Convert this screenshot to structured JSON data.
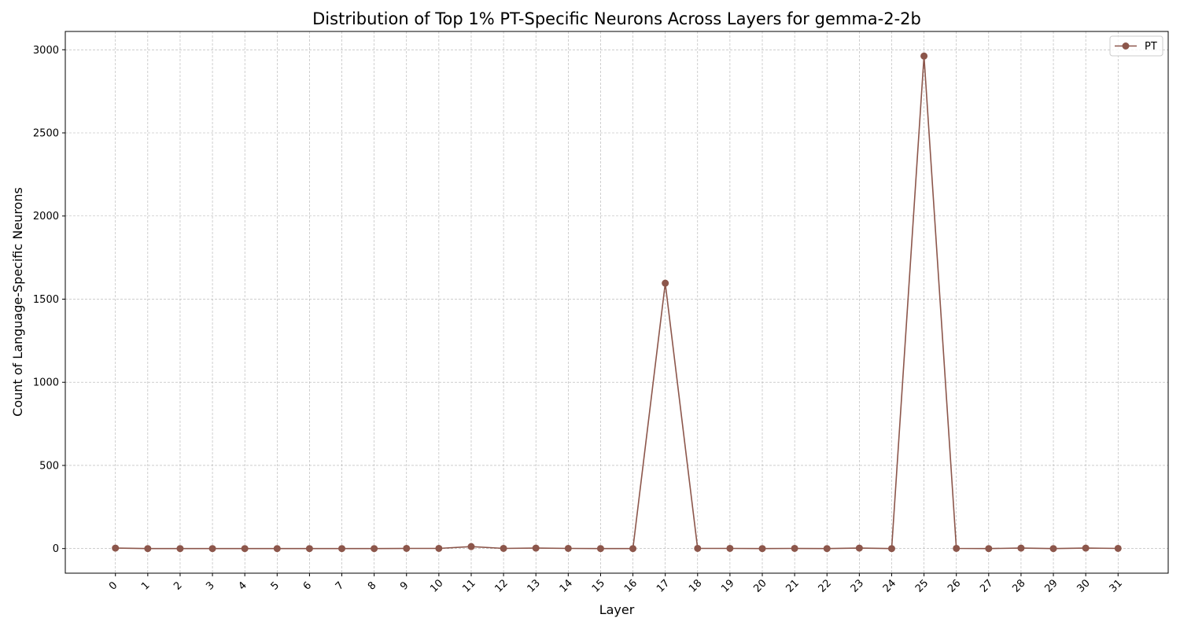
{
  "chart_data": {
    "type": "line",
    "title": "Distribution of Top 1% PT-Specific Neurons Across Layers for gemma-2-2b",
    "xlabel": "Layer",
    "ylabel": "Count of Language-Specific Neurons",
    "x": [
      0,
      1,
      2,
      3,
      4,
      5,
      6,
      7,
      8,
      9,
      10,
      11,
      12,
      13,
      14,
      15,
      16,
      17,
      18,
      19,
      20,
      21,
      22,
      23,
      24,
      25,
      26,
      27,
      28,
      29,
      30,
      31
    ],
    "x_tick_labels": [
      "0",
      "1",
      "2",
      "3",
      "4",
      "5",
      "6",
      "7",
      "8",
      "9",
      "10",
      "11",
      "12",
      "13",
      "14",
      "15",
      "16",
      "17",
      "18",
      "19",
      "20",
      "21",
      "22",
      "23",
      "24",
      "25",
      "26",
      "27",
      "28",
      "29",
      "30",
      "31"
    ],
    "y_ticks": [
      0,
      500,
      1000,
      1500,
      2000,
      2500,
      3000
    ],
    "y_tick_labels": [
      "0",
      "500",
      "1000",
      "1500",
      "2000",
      "2500",
      "3000"
    ],
    "ylim": [
      -148,
      3110
    ],
    "xlim": [
      -1.55,
      32.55
    ],
    "grid": true,
    "legend_position": "top-right",
    "series": [
      {
        "name": "PT",
        "color": "#8c564b",
        "marker": "circle",
        "values": [
          3,
          0,
          0,
          0,
          0,
          0,
          0,
          0,
          0,
          1,
          1,
          12,
          1,
          3,
          1,
          0,
          0,
          1596,
          1,
          1,
          0,
          1,
          0,
          3,
          0,
          2962,
          1,
          0,
          3,
          0,
          3,
          1
        ]
      }
    ]
  }
}
